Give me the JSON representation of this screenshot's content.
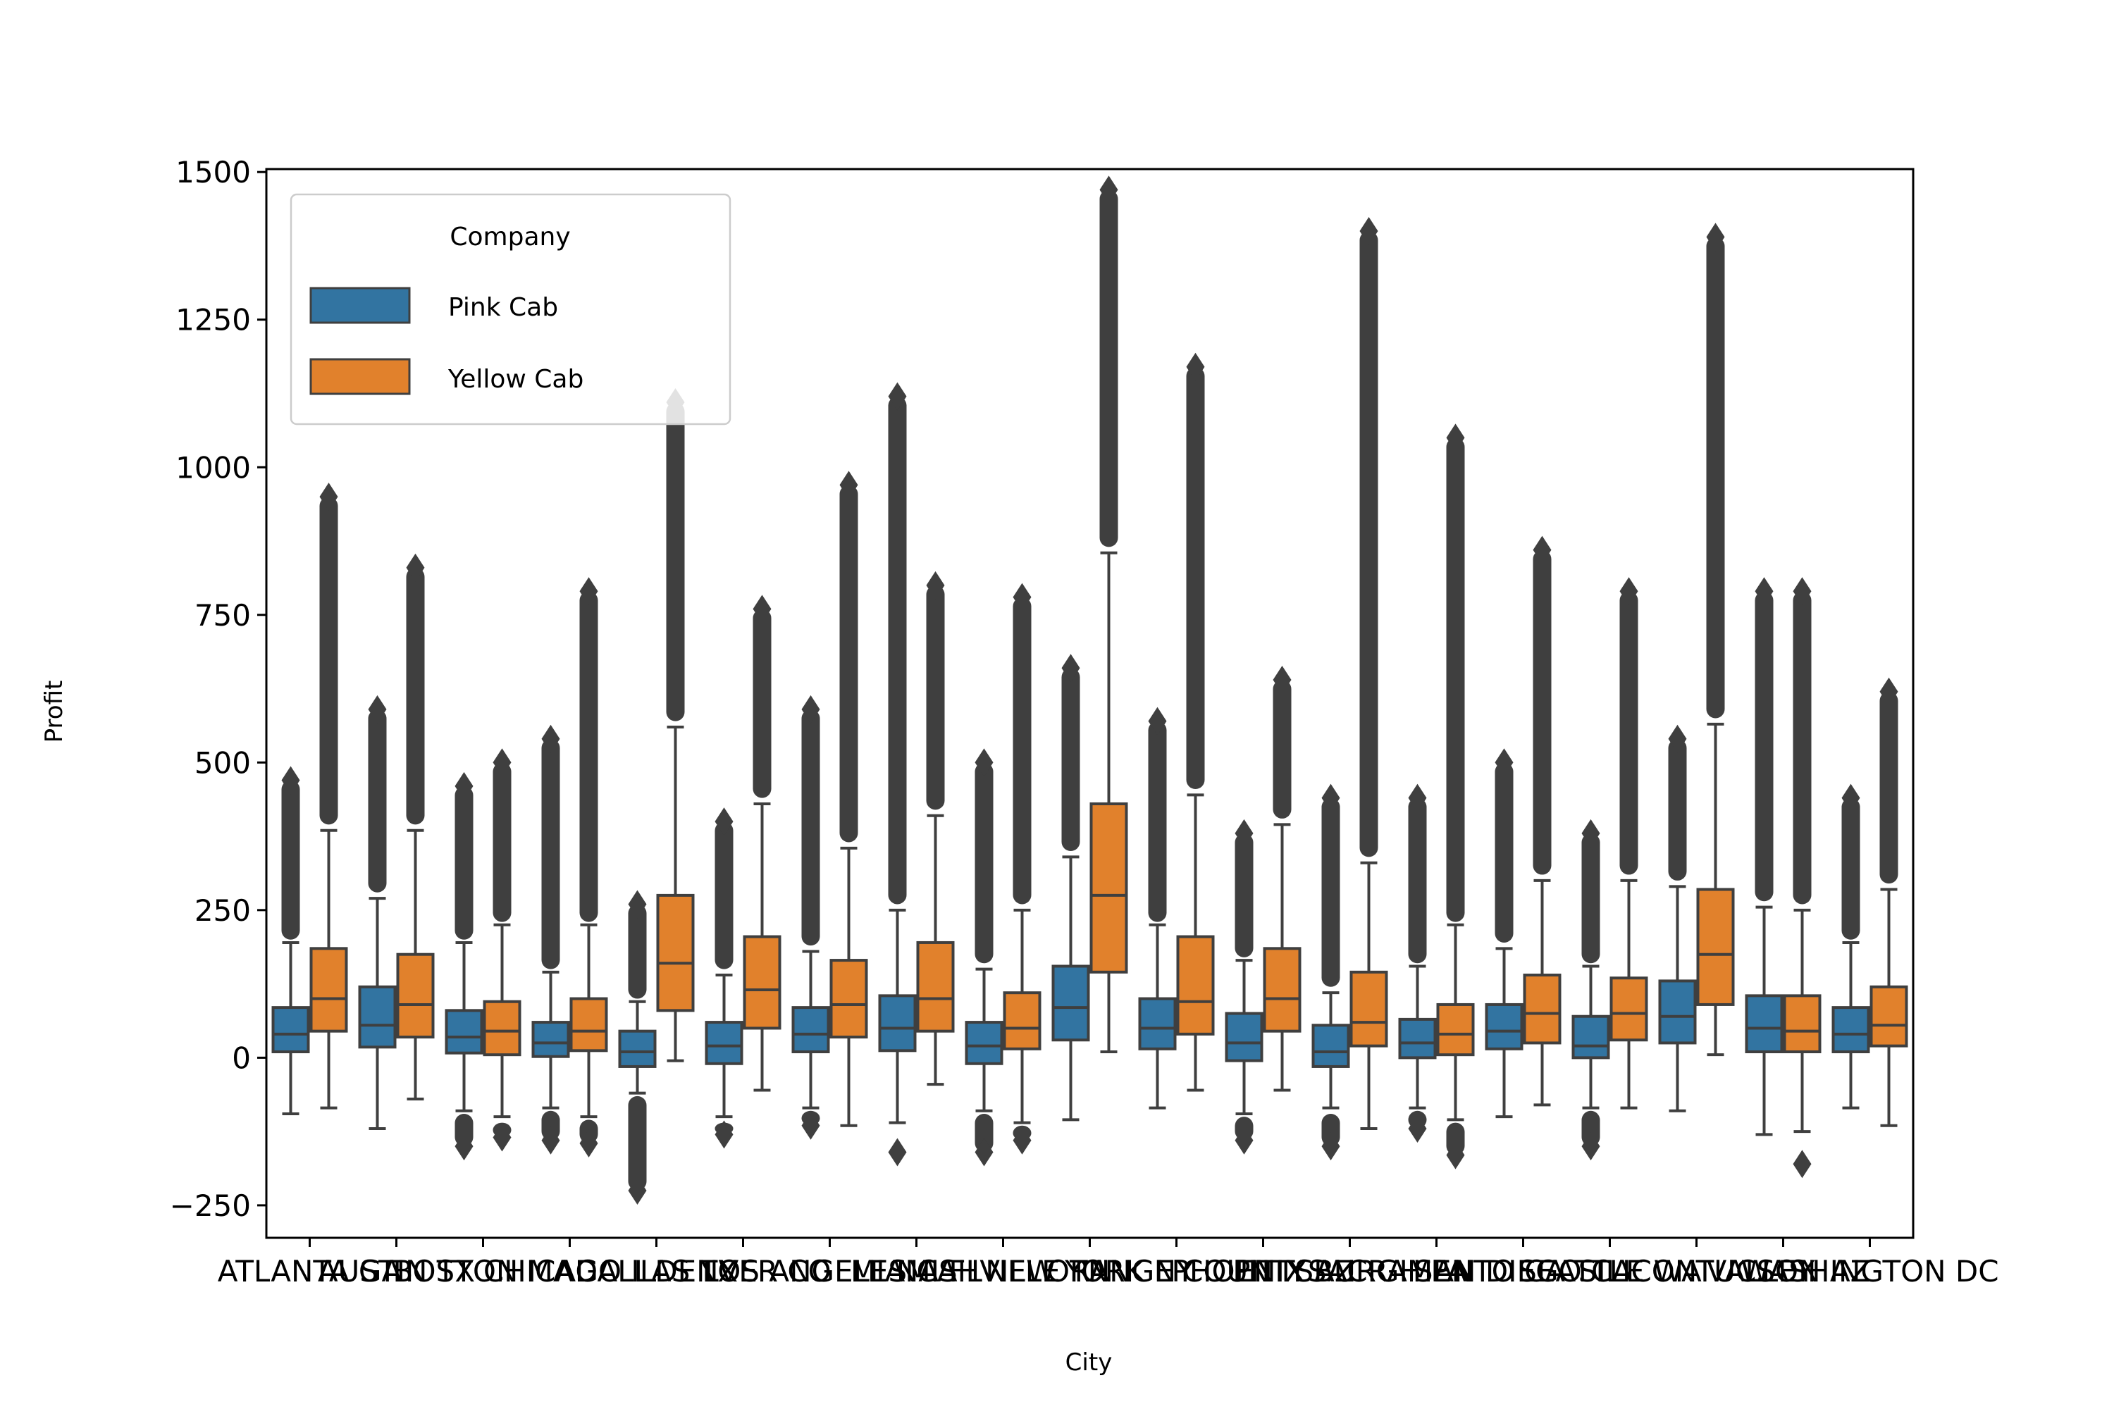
{
  "chart_data": {
    "type": "box",
    "title": "",
    "xlabel": "City",
    "ylabel": "Profit",
    "ylim": [
      -305,
      1505
    ],
    "yticks": [
      -250,
      0,
      250,
      500,
      750,
      1000,
      1250,
      1500
    ],
    "ytick_labels": [
      "−250",
      "0",
      "250",
      "500",
      "750",
      "1000",
      "1250",
      "1500"
    ],
    "categories": [
      "ATLANTA GA",
      "AUSTIN TX",
      "BOSTON MA",
      "CHICAGO IL",
      "DALLAS TX",
      "DENVER CO",
      "LOS ANGELES CA",
      "MIAMI FL",
      "NASHVILLE TN",
      "NEW YORK NY",
      "ORANGE COUNTY",
      "PHOENIX AZ",
      "PITTSBURGH PA",
      "SACRAMENTO CA",
      "SAN DIEGO CA",
      "SEATTLE WA",
      "SILICON VALLEY",
      "TUCSON AZ",
      "WASHINGTON DC"
    ],
    "legend": {
      "title": "Company",
      "placement": "top-left"
    },
    "series": [
      {
        "name": "Pink Cab",
        "color": "#3274a1",
        "boxes": [
          {
            "q1": 10,
            "median": 40,
            "q3": 85,
            "whislo": -95,
            "whishi": 195,
            "fliers_top": [
              200,
              470
            ],
            "fliers_bottom": []
          },
          {
            "q1": 18,
            "median": 55,
            "q3": 120,
            "whislo": -120,
            "whishi": 270,
            "fliers_top": [
              280,
              590
            ],
            "fliers_bottom": []
          },
          {
            "q1": 8,
            "median": 35,
            "q3": 80,
            "whislo": -90,
            "whishi": 195,
            "fliers_top": [
              200,
              460
            ],
            "fliers_bottom": [
              -95,
              -150
            ]
          },
          {
            "q1": 2,
            "median": 25,
            "q3": 60,
            "whislo": -85,
            "whishi": 145,
            "fliers_top": [
              150,
              540
            ],
            "fliers_bottom": [
              -90,
              -140
            ]
          },
          {
            "q1": -15,
            "median": 10,
            "q3": 45,
            "whislo": -60,
            "whishi": 95,
            "fliers_top": [
              100,
              260
            ],
            "fliers_bottom": [
              -65,
              -225
            ]
          },
          {
            "q1": -10,
            "median": 20,
            "q3": 60,
            "whislo": -100,
            "whishi": 140,
            "fliers_top": [
              150,
              400
            ],
            "fliers_bottom": [
              -110,
              -130
            ]
          },
          {
            "q1": 10,
            "median": 40,
            "q3": 85,
            "whislo": -85,
            "whishi": 180,
            "fliers_top": [
              190,
              590
            ],
            "fliers_bottom": [
              -90,
              -115
            ]
          },
          {
            "q1": 12,
            "median": 50,
            "q3": 105,
            "whislo": -110,
            "whishi": 250,
            "fliers_top": [
              260,
              1120
            ],
            "fliers_bottom": [
              -160
            ]
          },
          {
            "q1": -10,
            "median": 20,
            "q3": 60,
            "whislo": -90,
            "whishi": 150,
            "fliers_top": [
              160,
              500
            ],
            "fliers_bottom": [
              -95,
              -160
            ]
          },
          {
            "q1": 30,
            "median": 85,
            "q3": 155,
            "whislo": -105,
            "whishi": 340,
            "fliers_top": [
              350,
              660
            ],
            "fliers_bottom": []
          },
          {
            "q1": 15,
            "median": 50,
            "q3": 100,
            "whislo": -85,
            "whishi": 225,
            "fliers_top": [
              230,
              570
            ],
            "fliers_bottom": []
          },
          {
            "q1": -5,
            "median": 25,
            "q3": 75,
            "whislo": -95,
            "whishi": 165,
            "fliers_top": [
              170,
              380
            ],
            "fliers_bottom": [
              -100,
              -140
            ]
          },
          {
            "q1": -15,
            "median": 10,
            "q3": 55,
            "whislo": -85,
            "whishi": 110,
            "fliers_top": [
              120,
              440
            ],
            "fliers_bottom": [
              -95,
              -150
            ]
          },
          {
            "q1": 0,
            "median": 25,
            "q3": 65,
            "whislo": -85,
            "whishi": 155,
            "fliers_top": [
              160,
              440
            ],
            "fliers_bottom": [
              -90,
              -120
            ]
          },
          {
            "q1": 15,
            "median": 45,
            "q3": 90,
            "whislo": -100,
            "whishi": 185,
            "fliers_top": [
              195,
              500
            ],
            "fliers_bottom": []
          },
          {
            "q1": 0,
            "median": 20,
            "q3": 70,
            "whislo": -85,
            "whishi": 155,
            "fliers_top": [
              160,
              380
            ],
            "fliers_bottom": [
              -90,
              -150
            ]
          },
          {
            "q1": 25,
            "median": 70,
            "q3": 130,
            "whislo": -90,
            "whishi": 290,
            "fliers_top": [
              300,
              540
            ],
            "fliers_bottom": []
          },
          {
            "q1": 10,
            "median": 50,
            "q3": 105,
            "whislo": -130,
            "whishi": 255,
            "fliers_top": [
              265,
              790
            ],
            "fliers_bottom": []
          },
          {
            "q1": 10,
            "median": 40,
            "q3": 85,
            "whislo": -85,
            "whishi": 195,
            "fliers_top": [
              200,
              440
            ],
            "fliers_bottom": []
          }
        ]
      },
      {
        "name": "Yellow Cab",
        "color": "#e1812c",
        "boxes": [
          {
            "q1": 45,
            "median": 100,
            "q3": 185,
            "whislo": -85,
            "whishi": 385,
            "fliers_top": [
              395,
              950
            ],
            "fliers_bottom": []
          },
          {
            "q1": 35,
            "median": 90,
            "q3": 175,
            "whislo": -70,
            "whishi": 385,
            "fliers_top": [
              395,
              830
            ],
            "fliers_bottom": []
          },
          {
            "q1": 5,
            "median": 45,
            "q3": 95,
            "whislo": -100,
            "whishi": 225,
            "fliers_top": [
              230,
              500
            ],
            "fliers_bottom": [
              -110,
              -135
            ]
          },
          {
            "q1": 12,
            "median": 45,
            "q3": 100,
            "whislo": -100,
            "whishi": 225,
            "fliers_top": [
              230,
              790
            ],
            "fliers_bottom": [
              -105,
              -145
            ]
          },
          {
            "q1": 80,
            "median": 160,
            "q3": 275,
            "whislo": -5,
            "whishi": 560,
            "fliers_top": [
              570,
              1110
            ],
            "fliers_bottom": []
          },
          {
            "q1": 50,
            "median": 115,
            "q3": 205,
            "whislo": -55,
            "whishi": 430,
            "fliers_top": [
              440,
              760
            ],
            "fliers_bottom": []
          },
          {
            "q1": 35,
            "median": 90,
            "q3": 165,
            "whislo": -115,
            "whishi": 355,
            "fliers_top": [
              365,
              970
            ],
            "fliers_bottom": []
          },
          {
            "q1": 45,
            "median": 100,
            "q3": 195,
            "whislo": -45,
            "whishi": 410,
            "fliers_top": [
              420,
              800
            ],
            "fliers_bottom": []
          },
          {
            "q1": 15,
            "median": 50,
            "q3": 110,
            "whislo": -110,
            "whishi": 250,
            "fliers_top": [
              260,
              780
            ],
            "fliers_bottom": [
              -115,
              -140
            ]
          },
          {
            "q1": 145,
            "median": 275,
            "q3": 430,
            "whislo": 10,
            "whishi": 855,
            "fliers_top": [
              865,
              1470
            ],
            "fliers_bottom": []
          },
          {
            "q1": 40,
            "median": 95,
            "q3": 205,
            "whislo": -55,
            "whishi": 445,
            "fliers_top": [
              455,
              1170
            ],
            "fliers_bottom": []
          },
          {
            "q1": 45,
            "median": 100,
            "q3": 185,
            "whislo": -55,
            "whishi": 395,
            "fliers_top": [
              405,
              640
            ],
            "fliers_bottom": []
          },
          {
            "q1": 20,
            "median": 60,
            "q3": 145,
            "whislo": -120,
            "whishi": 330,
            "fliers_top": [
              340,
              1400
            ],
            "fliers_bottom": []
          },
          {
            "q1": 5,
            "median": 40,
            "q3": 90,
            "whislo": -105,
            "whishi": 225,
            "fliers_top": [
              230,
              1050
            ],
            "fliers_bottom": [
              -110,
              -165
            ]
          },
          {
            "q1": 25,
            "median": 75,
            "q3": 140,
            "whislo": -80,
            "whishi": 300,
            "fliers_top": [
              310,
              860
            ],
            "fliers_bottom": []
          },
          {
            "q1": 30,
            "median": 75,
            "q3": 135,
            "whislo": -85,
            "whishi": 300,
            "fliers_top": [
              310,
              790
            ],
            "fliers_bottom": []
          },
          {
            "q1": 90,
            "median": 175,
            "q3": 285,
            "whislo": 5,
            "whishi": 565,
            "fliers_top": [
              575,
              1390
            ],
            "fliers_bottom": []
          },
          {
            "q1": 10,
            "median": 45,
            "q3": 105,
            "whislo": -125,
            "whishi": 250,
            "fliers_top": [
              260,
              790
            ],
            "fliers_bottom": [
              -180
            ]
          },
          {
            "q1": 20,
            "median": 55,
            "q3": 120,
            "whislo": -115,
            "whishi": 285,
            "fliers_top": [
              295,
              620
            ],
            "fliers_bottom": []
          }
        ]
      }
    ]
  }
}
